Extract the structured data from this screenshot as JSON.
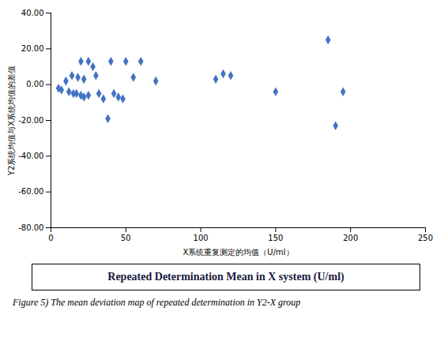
{
  "chart_data": {
    "type": "scatter",
    "x": [
      5,
      7,
      10,
      12,
      14,
      15,
      17,
      18,
      20,
      20,
      22,
      22,
      25,
      25,
      28,
      30,
      32,
      35,
      38,
      40,
      42,
      45,
      48,
      50,
      55,
      60,
      70,
      110,
      115,
      120,
      150,
      185,
      190,
      195
    ],
    "values": [
      -2,
      -3,
      2,
      -4,
      5,
      -5,
      -5,
      4,
      -6,
      13,
      -7,
      3,
      13,
      -6,
      10,
      5,
      -5,
      -8,
      -19,
      13,
      -5,
      -7,
      -8,
      13,
      4,
      13,
      2,
      3,
      6,
      5,
      -4,
      25,
      -23,
      -4
    ],
    "color": "#4472C4",
    "marker": "diamond",
    "x_label": "X系统重复测定的均值（U/ml）",
    "y_label": "Y2系统均值与X系统均值的差值",
    "xlim": [
      0,
      250
    ],
    "ylim": [
      -80,
      40
    ],
    "xticks": [
      0,
      50,
      100,
      150,
      200,
      250
    ],
    "yticks": [
      {
        "value": -80,
        "label": "-80.00"
      },
      {
        "value": -60,
        "label": "-60.00"
      },
      {
        "value": -40,
        "label": "-40.00"
      },
      {
        "value": -20,
        "label": "-20.00"
      },
      {
        "value": 0,
        "label": "0.00"
      },
      {
        "value": 20,
        "label": "20.00"
      },
      {
        "value": 40,
        "label": "40.00"
      }
    ],
    "grid": false,
    "annotations": [
      "Repeated Determination Mean in X system (U/ml)"
    ],
    "caption": "Figure 5) The mean deviation map of repeated determination in Y2-X group"
  }
}
